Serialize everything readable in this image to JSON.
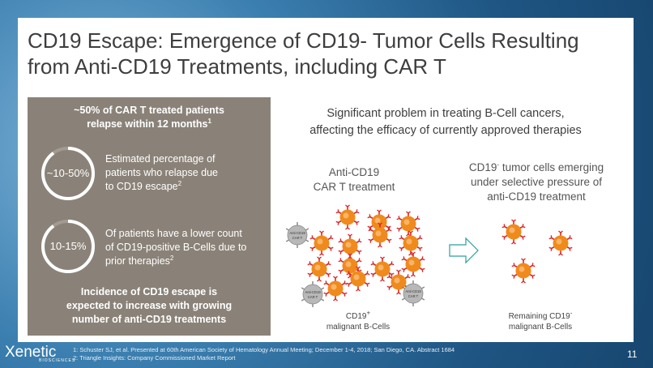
{
  "title_line1": "CD19 Escape: Emergence of CD19- Tumor Cells Resulting",
  "title_line2": "from Anti-CD19 Treatments, including CAR T",
  "left": {
    "head_line1": "~50% of CAR T treated patients",
    "head_line2": "relapse within 12 months",
    "head_sup": "1",
    "stat1": {
      "value": "~10-50%",
      "fraction": 0.9,
      "line1": "Estimated percentage of",
      "line2": "patients who relapse due",
      "line3": "to CD19 escape",
      "sup": "2"
    },
    "stat2": {
      "value": "10-15%",
      "fraction": 0.9,
      "line1": "Of patients have a lower count",
      "line2": "of CD19-positive B-Cells due to",
      "line3": "prior therapies",
      "sup": "2"
    },
    "foot_line1": "Incidence of CD19 escape is",
    "foot_line2": "expected to increase with growing",
    "foot_line3": "number of anti-CD19 treatments"
  },
  "right": {
    "head_line1": "Significant problem in treating B-Cell cancers,",
    "head_line2": "affecting the efficacy of currently approved therapies",
    "col1_line1": "Anti-CD19",
    "col1_line2": "CAR T treatment",
    "col2_line1_a": "CD19",
    "col2_line1_sup": "-",
    "col2_line1_b": " tumor cells emerging",
    "col2_line2": "under selective pressure of",
    "col2_line3": "anti-CD19 treatment",
    "car_t_label1": "Anti-CD19",
    "car_t_label2": "CAR T",
    "caption1_a": "CD19",
    "caption1_sup": "+",
    "caption1_line2": "malignant B-Cells",
    "caption2_a": "Remaining CD19",
    "caption2_sup": "-",
    "caption2_line2": "malignant B-Cells"
  },
  "footnote1": "1: Schuster SJ, et al. Presented at 60th American Society of Hematology Annual Meeting; December 1-4, 2018; San Diego, CA. Abstract 1684",
  "footnote2": "2: Triangle Insights: Company Commissioned  Market Report",
  "logo_text": "Xenetic",
  "logo_sub": "BIOSCIENCES",
  "page_number": "11",
  "colors": {
    "panel": "#8a8278",
    "cell_orange": "#f08a1c",
    "receptor_red": "#d9262b",
    "cart_grey": "#b8b8b8",
    "arrow_teal": "#2aa198"
  }
}
